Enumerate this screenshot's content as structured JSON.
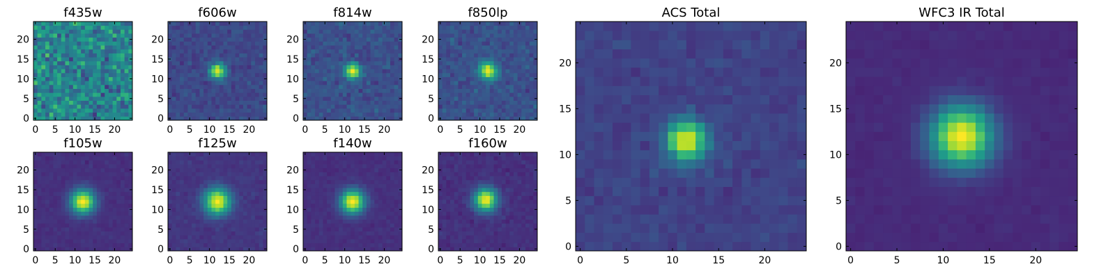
{
  "figure": {
    "colormap": "viridis"
  },
  "chart_data": [
    {
      "type": "heatmap",
      "title": "f435w",
      "pattern": "noise",
      "xlim": [
        0,
        24
      ],
      "ylim": [
        0,
        24
      ],
      "xticks": [
        "0",
        "5",
        "10",
        "15",
        "20"
      ],
      "yticks": [
        "0",
        "5",
        "10",
        "15",
        "20"
      ],
      "peak": [
        12,
        12
      ],
      "size": [
        25,
        25
      ]
    },
    {
      "type": "heatmap",
      "title": "f606w",
      "pattern": "source",
      "sigma": 1.3,
      "background": 0.22,
      "noise": 0.07,
      "xlim": [
        0,
        24
      ],
      "ylim": [
        0,
        24
      ],
      "xticks": [
        "0",
        "5",
        "10",
        "15",
        "20"
      ],
      "yticks": [
        "0",
        "5",
        "10",
        "15",
        "20"
      ],
      "peak": [
        12,
        12
      ],
      "size": [
        25,
        25
      ]
    },
    {
      "type": "heatmap",
      "title": "f814w",
      "pattern": "source",
      "sigma": 1.3,
      "background": 0.25,
      "noise": 0.08,
      "xlim": [
        0,
        24
      ],
      "ylim": [
        0,
        24
      ],
      "xticks": [
        "0",
        "5",
        "10",
        "15",
        "20"
      ],
      "yticks": [
        "0",
        "5",
        "10",
        "15",
        "20"
      ],
      "peak": [
        12,
        12
      ],
      "size": [
        25,
        25
      ]
    },
    {
      "type": "heatmap",
      "title": "f850lp",
      "pattern": "source",
      "sigma": 1.5,
      "background": 0.25,
      "noise": 0.08,
      "xlim": [
        0,
        24
      ],
      "ylim": [
        0,
        24
      ],
      "xticks": [
        "0",
        "5",
        "10",
        "15",
        "20"
      ],
      "yticks": [
        "0",
        "5",
        "10",
        "15",
        "20"
      ],
      "peak": [
        12,
        12
      ],
      "size": [
        25,
        25
      ]
    },
    {
      "type": "heatmap",
      "title": "f105w",
      "pattern": "source",
      "sigma": 2.1,
      "background": 0.14,
      "noise": 0.03,
      "xlim": [
        0,
        24
      ],
      "ylim": [
        0,
        24
      ],
      "xticks": [
        "0",
        "5",
        "10",
        "15",
        "20"
      ],
      "yticks": [
        "0",
        "5",
        "10",
        "15",
        "20"
      ],
      "peak": [
        12,
        12
      ],
      "size": [
        25,
        25
      ]
    },
    {
      "type": "heatmap",
      "title": "f125w",
      "pattern": "source",
      "sigma": 2.3,
      "background": 0.16,
      "noise": 0.035,
      "xlim": [
        0,
        24
      ],
      "ylim": [
        0,
        24
      ],
      "xticks": [
        "0",
        "5",
        "10",
        "15",
        "20"
      ],
      "yticks": [
        "0",
        "5",
        "10",
        "15",
        "20"
      ],
      "peak": [
        12,
        12
      ],
      "size": [
        25,
        25
      ]
    },
    {
      "type": "heatmap",
      "title": "f140w",
      "pattern": "source",
      "sigma": 2.1,
      "background": 0.14,
      "noise": 0.03,
      "xlim": [
        0,
        24
      ],
      "ylim": [
        0,
        24
      ],
      "xticks": [
        "0",
        "5",
        "10",
        "15",
        "20"
      ],
      "yticks": [
        "0",
        "5",
        "10",
        "15",
        "20"
      ],
      "peak": [
        12,
        12
      ],
      "size": [
        25,
        25
      ]
    },
    {
      "type": "heatmap",
      "title": "f160w",
      "pattern": "source",
      "sigma": 2.0,
      "background": 0.14,
      "noise": 0.04,
      "xlim": [
        0,
        24
      ],
      "ylim": [
        0,
        24
      ],
      "xticks": [
        "0",
        "5",
        "10",
        "15",
        "20"
      ],
      "yticks": [
        "0",
        "5",
        "10",
        "15",
        "20"
      ],
      "peak": [
        11.5,
        12.5
      ],
      "size": [
        25,
        25
      ]
    },
    {
      "type": "heatmap",
      "title": "ACS Total",
      "pattern": "source",
      "sigma": 1.5,
      "background": 0.2,
      "noise": 0.05,
      "xlim": [
        0,
        24
      ],
      "ylim": [
        0,
        24
      ],
      "xticks": [
        "0",
        "5",
        "10",
        "15",
        "20"
      ],
      "yticks": [
        "0",
        "5",
        "10",
        "15",
        "20"
      ],
      "peak": [
        11.5,
        11.5
      ],
      "size": [
        25,
        25
      ]
    },
    {
      "type": "heatmap",
      "title": "WFC3 IR Total",
      "pattern": "source",
      "sigma": 2.3,
      "background": 0.12,
      "noise": 0.02,
      "xlim": [
        0,
        24
      ],
      "ylim": [
        0,
        24
      ],
      "xticks": [
        "0",
        "5",
        "10",
        "15",
        "20"
      ],
      "yticks": [
        "0",
        "5",
        "10",
        "15",
        "20"
      ],
      "peak": [
        12,
        12
      ],
      "size": [
        25,
        25
      ]
    }
  ]
}
